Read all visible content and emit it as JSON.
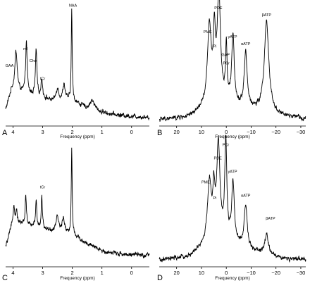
{
  "figure": {
    "background": "#ffffff",
    "line_color": "#000000"
  },
  "chart_data": [
    {
      "type": "line",
      "panel_label": "A",
      "xlabel": "Frequency (ppm)",
      "ylabel": "",
      "title": "",
      "x_reversed": true,
      "xlim": [
        4.25,
        -0.6
      ],
      "ylim": [
        0,
        1
      ],
      "xticks": [
        {
          "value": 4,
          "label": "4"
        },
        {
          "value": 3,
          "label": "3"
        },
        {
          "value": 2,
          "label": "2"
        },
        {
          "value": 1,
          "label": "1"
        },
        {
          "value": 0,
          "label": "0"
        }
      ],
      "grid": false,
      "baseline": {
        "x": [
          4.25,
          4.05,
          3.6,
          3.0,
          2.5,
          2.0,
          1.5,
          1.0,
          0.5,
          0.0,
          -0.6
        ],
        "y": [
          0.12,
          0.28,
          0.26,
          0.22,
          0.18,
          0.2,
          0.13,
          0.1,
          0.08,
          0.07,
          0.06
        ]
      },
      "peaks": [
        {
          "ppm": 3.9,
          "height": 0.33,
          "width": 0.05,
          "label": "GAA",
          "label_x": 4.12,
          "label_y": 0.48
        },
        {
          "ppm": 3.55,
          "height": 0.43,
          "width": 0.03,
          "label": "mI",
          "label_x": 3.58,
          "label_y": 0.62
        },
        {
          "ppm": 3.22,
          "height": 0.38,
          "width": 0.03,
          "label": "Cho",
          "label_x": 3.33,
          "label_y": 0.52
        },
        {
          "ppm": 3.03,
          "height": 0.16,
          "width": 0.03,
          "label": "tCr",
          "label_x": 3.0,
          "label_y": 0.37
        },
        {
          "ppm": 2.5,
          "height": 0.12,
          "width": 0.06,
          "label": "",
          "label_x": 0,
          "label_y": 0
        },
        {
          "ppm": 2.28,
          "height": 0.14,
          "width": 0.05,
          "label": "",
          "label_x": 0,
          "label_y": 0
        },
        {
          "ppm": 2.02,
          "height": 0.76,
          "width": 0.018,
          "label": "NAA",
          "label_x": 1.98,
          "label_y": 0.98
        },
        {
          "ppm": 1.33,
          "height": 0.08,
          "width": 0.1,
          "label": "",
          "label_x": 0,
          "label_y": 0
        }
      ],
      "noise": 0.012
    },
    {
      "type": "line",
      "panel_label": "B",
      "xlabel": "Frequency (ppm)",
      "ylabel": "",
      "title": "",
      "x_reversed": true,
      "xlim": [
        27,
        -32
      ],
      "ylim": [
        0,
        1
      ],
      "xticks": [
        {
          "value": 20,
          "label": "20"
        },
        {
          "value": 10,
          "label": "10"
        },
        {
          "value": 0,
          "label": "0"
        },
        {
          "value": -10,
          "label": "−10"
        },
        {
          "value": -20,
          "label": "−20"
        },
        {
          "value": -30,
          "label": "−30"
        }
      ],
      "grid": false,
      "baseline": {
        "x": [
          27,
          15,
          10,
          5,
          0,
          -5,
          -10,
          -15,
          -20,
          -25,
          -32
        ],
        "y": [
          0.04,
          0.06,
          0.12,
          0.17,
          0.17,
          0.14,
          0.12,
          0.1,
          0.08,
          0.06,
          0.05
        ]
      },
      "peaks": [
        {
          "ppm": 6.8,
          "height": 0.65,
          "width": 0.9,
          "label": "PME",
          "label_x": 7.5,
          "label_y": 0.76
        },
        {
          "ppm": 4.8,
          "height": 0.5,
          "width": 0.5,
          "label": "Pi",
          "label_x": 4.6,
          "label_y": 0.64
        },
        {
          "ppm": 3.0,
          "height": 0.9,
          "width": 0.8,
          "label": "PDE",
          "label_x": 3.2,
          "label_y": 0.96
        },
        {
          "ppm": 0.0,
          "height": 0.45,
          "width": 0.35,
          "label": "PCr",
          "label_x": 0.0,
          "label_y": 0.5
        },
        {
          "ppm": -2.7,
          "height": 0.57,
          "width": 0.6,
          "label": "γATP",
          "label_x": -2.5,
          "label_y": 0.72
        },
        {
          "ppm": -7.8,
          "height": 0.46,
          "width": 0.7,
          "label": "αATP",
          "label_x": -7.8,
          "label_y": 0.66
        },
        {
          "ppm": -16.2,
          "height": 0.75,
          "width": 1.1,
          "label": "βATP",
          "label_x": -16.2,
          "label_y": 0.9
        }
      ],
      "extra_labels": [
        {
          "text": "GAP",
          "x": 0.3,
          "y": 0.57
        }
      ],
      "noise": 0.012
    },
    {
      "type": "line",
      "panel_label": "C",
      "xlabel": "Frequency (ppm)",
      "ylabel": "",
      "title": "",
      "x_reversed": true,
      "xlim": [
        4.25,
        -0.6
      ],
      "ylim": [
        0,
        1
      ],
      "xticks": [
        {
          "value": 4,
          "label": "4"
        },
        {
          "value": 3,
          "label": "3"
        },
        {
          "value": 2,
          "label": "2"
        },
        {
          "value": 1,
          "label": "1"
        },
        {
          "value": 0,
          "label": "0"
        }
      ],
      "grid": false,
      "baseline": {
        "x": [
          4.25,
          4.0,
          3.6,
          3.0,
          2.5,
          2.0,
          1.5,
          1.0,
          0.5,
          0.0,
          -0.6
        ],
        "y": [
          0.15,
          0.36,
          0.34,
          0.3,
          0.28,
          0.26,
          0.18,
          0.12,
          0.1,
          0.09,
          0.08
        ]
      },
      "peaks": [
        {
          "ppm": 3.97,
          "height": 0.14,
          "width": 0.03,
          "label": "",
          "label_x": 0,
          "label_y": 0
        },
        {
          "ppm": 3.88,
          "height": 0.1,
          "width": 0.03,
          "label": "",
          "label_x": 0,
          "label_y": 0
        },
        {
          "ppm": 3.57,
          "height": 0.24,
          "width": 0.025,
          "label": "",
          "label_x": 0,
          "label_y": 0
        },
        {
          "ppm": 3.22,
          "height": 0.23,
          "width": 0.025,
          "label": "",
          "label_x": 0,
          "label_y": 0
        },
        {
          "ppm": 3.03,
          "height": 0.26,
          "width": 0.025,
          "label": "tCr",
          "label_x": 3.0,
          "label_y": 0.64
        },
        {
          "ppm": 2.5,
          "height": 0.12,
          "width": 0.05,
          "label": "",
          "label_x": 0,
          "label_y": 0
        },
        {
          "ppm": 2.3,
          "height": 0.12,
          "width": 0.05,
          "label": "",
          "label_x": 0,
          "label_y": 0
        },
        {
          "ppm": 2.02,
          "height": 0.72,
          "width": 0.018,
          "label": "",
          "label_x": 0,
          "label_y": 0
        }
      ],
      "noise": 0.012
    },
    {
      "type": "line",
      "panel_label": "D",
      "xlabel": "Frequency (ppm)",
      "ylabel": "",
      "title": "",
      "x_reversed": true,
      "xlim": [
        27,
        -32
      ],
      "ylim": [
        0,
        1
      ],
      "xticks": [
        {
          "value": 20,
          "label": "20"
        },
        {
          "value": 10,
          "label": "10"
        },
        {
          "value": 0,
          "label": "0"
        },
        {
          "value": -10,
          "label": "−10"
        },
        {
          "value": -20,
          "label": "−20"
        },
        {
          "value": -30,
          "label": "−30"
        }
      ],
      "grid": false,
      "baseline": {
        "x": [
          27,
          15,
          10,
          5,
          0,
          -5,
          -10,
          -15,
          -20,
          -25,
          -32
        ],
        "y": [
          0.04,
          0.07,
          0.14,
          0.2,
          0.2,
          0.16,
          0.12,
          0.09,
          0.07,
          0.05,
          0.05
        ]
      },
      "peaks": [
        {
          "ppm": 6.8,
          "height": 0.5,
          "width": 0.9,
          "label": "PME",
          "label_x": 8.3,
          "label_y": 0.68
        },
        {
          "ppm": 5.0,
          "height": 0.34,
          "width": 0.5,
          "label": "Pi",
          "label_x": 4.6,
          "label_y": 0.55
        },
        {
          "ppm": 3.2,
          "height": 0.78,
          "width": 0.8,
          "label": "PDE",
          "label_x": 3.4,
          "label_y": 0.88
        },
        {
          "ppm": 0.2,
          "height": 0.78,
          "width": 0.5,
          "label": "PCr",
          "label_x": 0.2,
          "label_y": 0.99
        },
        {
          "ppm": -2.7,
          "height": 0.5,
          "width": 0.6,
          "label": "γATP",
          "label_x": -2.5,
          "label_y": 0.77
        },
        {
          "ppm": -7.8,
          "height": 0.36,
          "width": 0.7,
          "label": "αATP",
          "label_x": -7.8,
          "label_y": 0.57
        },
        {
          "ppm": -16.2,
          "height": 0.16,
          "width": 0.9,
          "label": "βATP",
          "label_x": -17.8,
          "label_y": 0.38
        }
      ],
      "noise": 0.012
    }
  ]
}
